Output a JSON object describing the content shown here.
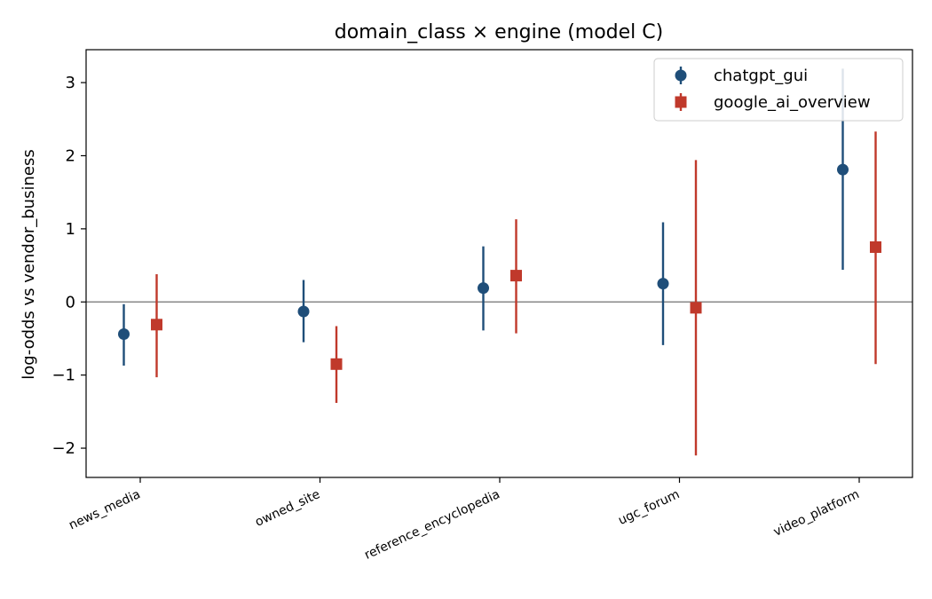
{
  "chart_data": {
    "type": "scatter",
    "subtype": "point-with-error-bars",
    "title": "domain_class × engine (model C)",
    "xlabel": "",
    "ylabel": "log-odds vs vendor_business",
    "categories": [
      "news_media",
      "owned_site",
      "reference_encyclopedia",
      "ugc_forum",
      "video_platform"
    ],
    "ylim": [
      -2.4,
      3.45
    ],
    "yticks": [
      -2,
      -1,
      0,
      1,
      2,
      3
    ],
    "ytick_labels": [
      "−2",
      "−1",
      "0",
      "1",
      "2",
      "3"
    ],
    "reference_line": 0,
    "grid": false,
    "legend_position": "top-right",
    "series": [
      {
        "name": "chatgpt_gui",
        "color": "#1f4e79",
        "marker": "circle",
        "values": [
          -0.44,
          -0.13,
          0.19,
          0.25,
          1.81
        ],
        "lower": [
          -0.87,
          -0.55,
          -0.39,
          -0.59,
          0.44
        ],
        "upper": [
          -0.03,
          0.3,
          0.76,
          1.09,
          3.19
        ]
      },
      {
        "name": "google_ai_overview",
        "color": "#c0392b",
        "marker": "square",
        "values": [
          -0.31,
          -0.85,
          0.36,
          -0.08,
          0.75
        ],
        "lower": [
          -1.03,
          -1.38,
          -0.43,
          -2.1,
          -0.85
        ],
        "upper": [
          0.38,
          -0.33,
          1.13,
          1.94,
          2.33
        ]
      }
    ]
  }
}
